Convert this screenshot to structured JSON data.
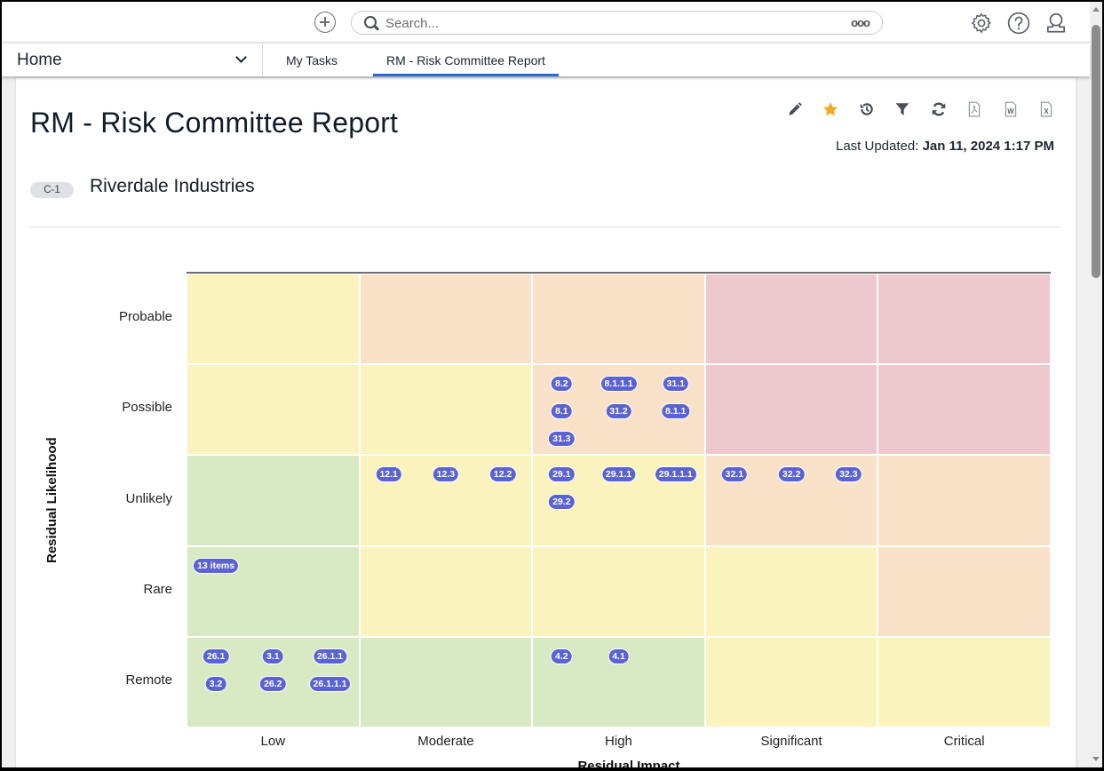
{
  "topbar": {
    "search_placeholder": "Search...",
    "more_label": "ooo",
    "icons": [
      "add-icon",
      "search-icon",
      "more-icon",
      "gear-icon",
      "help-icon",
      "user-icon"
    ]
  },
  "nav": {
    "home_label": "Home",
    "tabs": [
      {
        "label": "My Tasks",
        "active": false
      },
      {
        "label": "RM - Risk Committee Report",
        "active": true
      }
    ]
  },
  "report": {
    "title": "RM - Risk Committee Report",
    "toolbar": [
      "edit-icon",
      "favorite-star-icon",
      "history-icon",
      "filter-icon",
      "refresh-icon",
      "export-pdf-icon",
      "export-word-icon",
      "export-excel-icon"
    ],
    "last_updated_label": "Last Updated:",
    "last_updated_value": "Jan 11, 2024 1:17 PM",
    "badge": "C-1",
    "org_name": "Riverdale Industries"
  },
  "colors": {
    "accent": "#2a6ad6",
    "star": "#f5a623",
    "pill": "#5b63d3",
    "green": "#d8eac3",
    "yellow": "#faf3bd",
    "orange": "#fae2c9",
    "red": "#edc8ce"
  },
  "chart_data": {
    "type": "heatmap",
    "title": "",
    "xlabel": "Residual Impact",
    "ylabel": "Residual Likelihood",
    "x_categories": [
      "Low",
      "Moderate",
      "High",
      "Significant",
      "Critical"
    ],
    "y_categories": [
      "Probable",
      "Possible",
      "Unlikely",
      "Rare",
      "Remote"
    ],
    "cell_levels": [
      [
        "yellow",
        "orange",
        "orange",
        "red",
        "red"
      ],
      [
        "yellow",
        "yellow",
        "orange",
        "red",
        "red"
      ],
      [
        "green",
        "yellow",
        "yellow",
        "orange",
        "orange"
      ],
      [
        "green",
        "yellow",
        "yellow",
        "yellow",
        "orange"
      ],
      [
        "green",
        "green",
        "green",
        "yellow",
        "yellow"
      ]
    ],
    "items": [
      {
        "likelihood": "Possible",
        "impact": "High",
        "labels": [
          "8.2",
          "8.1.1.1",
          "31.1",
          "8.1",
          "31.2",
          "8.1.1",
          "31.3"
        ]
      },
      {
        "likelihood": "Unlikely",
        "impact": "Moderate",
        "labels": [
          "12.1",
          "12.3",
          "12.2"
        ]
      },
      {
        "likelihood": "Unlikely",
        "impact": "High",
        "labels": [
          "29.1",
          "29.1.1",
          "29.1.1.1",
          "29.2"
        ]
      },
      {
        "likelihood": "Unlikely",
        "impact": "Significant",
        "labels": [
          "32.1",
          "32.2",
          "32.3"
        ]
      },
      {
        "likelihood": "Rare",
        "impact": "Low",
        "labels": [
          "13 items"
        ]
      },
      {
        "likelihood": "Remote",
        "impact": "Low",
        "labels": [
          "26.1",
          "3.1",
          "26.1.1",
          "3.2",
          "26.2",
          "26.1.1.1"
        ]
      },
      {
        "likelihood": "Remote",
        "impact": "High",
        "labels": [
          "4.2",
          "4.1"
        ]
      }
    ]
  }
}
